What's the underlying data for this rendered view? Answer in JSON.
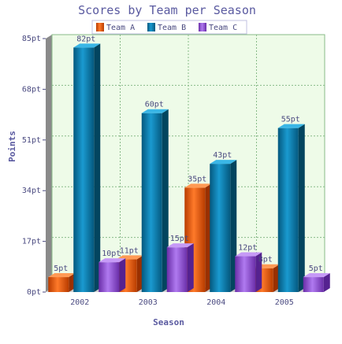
{
  "chart_data": {
    "type": "bar",
    "title": "Scores by Team per Season",
    "xlabel": "Season",
    "ylabel": "Points",
    "categories": [
      "2002",
      "2003",
      "2004",
      "2005"
    ],
    "series": [
      {
        "name": "Team A",
        "values": [
          5,
          11,
          35,
          8
        ],
        "labels": [
          "5pt",
          "11pt",
          "35pt",
          "8pt"
        ],
        "color": "#e8560a"
      },
      {
        "name": "Team B",
        "values": [
          82,
          60,
          43,
          55
        ],
        "labels": [
          "82pt",
          "60pt",
          "43pt",
          "55pt"
        ],
        "color": "#0a78a8"
      },
      {
        "name": "Team C",
        "values": [
          10,
          15,
          12,
          5
        ],
        "labels": [
          "10pt",
          "15pt",
          "12pt",
          "5pt"
        ],
        "color": "#8a4ad0"
      }
    ],
    "ylim": [
      0,
      85
    ],
    "y_ticks": [
      {
        "value": 0,
        "label": "0pt"
      },
      {
        "value": 17,
        "label": "17pt"
      },
      {
        "value": 34,
        "label": "34pt"
      },
      {
        "value": 51,
        "label": "51pt"
      },
      {
        "value": 68,
        "label": "68pt"
      },
      {
        "value": 85,
        "label": "85pt"
      }
    ],
    "grid": true,
    "legend_position": "top-center",
    "plot_background": "#eefbe8",
    "grid_color": "#88bb88"
  }
}
